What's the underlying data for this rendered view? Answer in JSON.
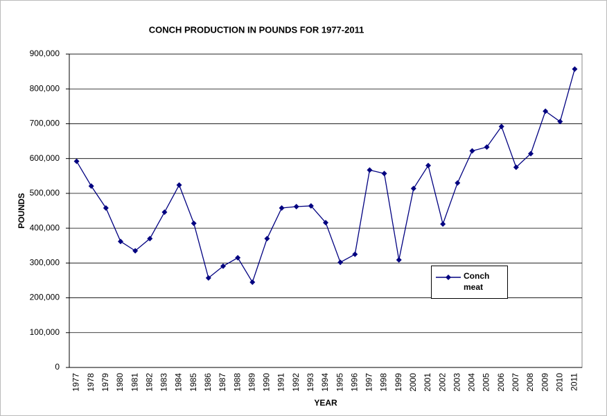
{
  "chart_data": {
    "type": "line",
    "title": "CONCH PRODUCTION IN POUNDS FOR 1977-2011",
    "x_label": "YEAR",
    "y_label": "POUNDS",
    "categories": [
      "1977",
      "1978",
      "1979",
      "1980",
      "1981",
      "1982",
      "1983",
      "1984",
      "1985",
      "1986",
      "1987",
      "1988",
      "1989",
      "1990",
      "1991",
      "1992",
      "1993",
      "1994",
      "1995",
      "1996",
      "1997",
      "1998",
      "1999",
      "2000",
      "2001",
      "2002",
      "2003",
      "2004",
      "2005",
      "2006",
      "2007",
      "2008",
      "2009",
      "2010",
      "2011"
    ],
    "series": [
      {
        "name": "Conch meat",
        "color": "#000080",
        "values": [
          592000,
          521000,
          458000,
          362000,
          335000,
          370000,
          446000,
          524000,
          414000,
          257000,
          291000,
          315000,
          245000,
          370000,
          458000,
          462000,
          464000,
          416000,
          302000,
          325000,
          567000,
          557000,
          309000,
          514000,
          580000,
          412000,
          530000,
          622000,
          633000,
          692000,
          575000,
          614000,
          736000,
          706000,
          857000
        ]
      }
    ],
    "ylim": [
      0,
      900000
    ],
    "yticks": [
      0,
      {
        "value": 100000,
        "label": "100,000"
      },
      {
        "value": 200000,
        "label": "200,000"
      },
      {
        "value": 300000,
        "label": "300,000"
      },
      {
        "value": 400000,
        "label": "400,000"
      },
      {
        "value": 500000,
        "label": "500,000"
      },
      {
        "value": 600000,
        "label": "600,000"
      },
      {
        "value": 700000,
        "label": "700,000"
      },
      {
        "value": 800000,
        "label": "800,000"
      },
      {
        "value": 900000,
        "label": "900,000"
      }
    ],
    "grid": true
  }
}
